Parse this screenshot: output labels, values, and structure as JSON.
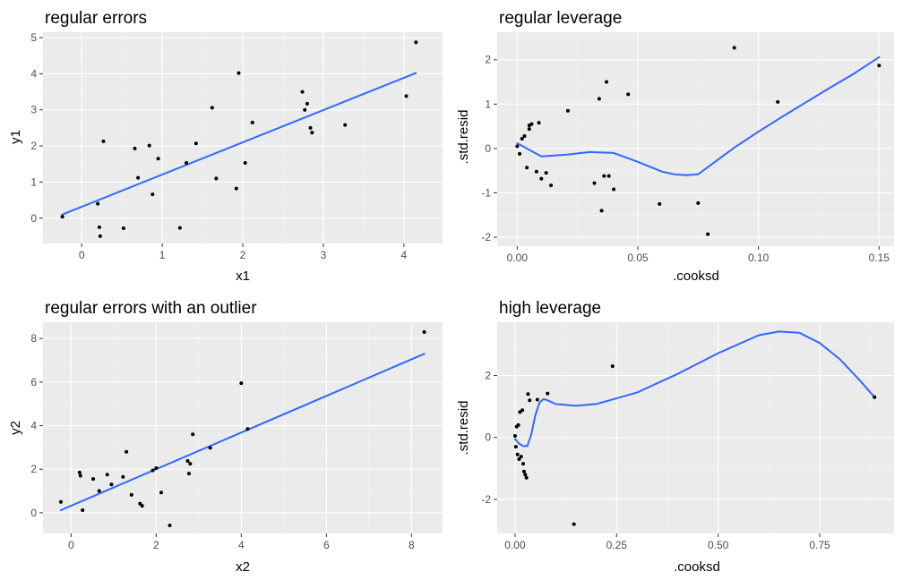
{
  "chart_data": [
    {
      "type": "scatter",
      "title": "regular errors",
      "xlabel": "x1",
      "ylabel": "y1",
      "xlim": [
        -0.48,
        4.48
      ],
      "ylim": [
        -0.7,
        5.15
      ],
      "xticks": [
        0,
        1,
        2,
        3,
        4
      ],
      "yticks": [
        0,
        1,
        2,
        3,
        4,
        5
      ],
      "xtick_labels": [
        "0",
        "1",
        "2",
        "3",
        "4"
      ],
      "ytick_labels": [
        "0",
        "1",
        "2",
        "3",
        "4",
        "5"
      ],
      "grid": true,
      "points": {
        "x": [
          -0.24,
          0.2,
          0.22,
          0.23,
          0.27,
          0.52,
          0.66,
          0.7,
          0.84,
          0.88,
          0.95,
          1.22,
          1.3,
          1.42,
          1.62,
          1.67,
          1.92,
          1.95,
          2.03,
          2.12,
          2.74,
          2.77,
          2.8,
          2.84,
          2.86,
          3.27,
          4.03,
          4.15
        ],
        "y": [
          0.04,
          0.4,
          -0.25,
          -0.5,
          2.13,
          -0.28,
          1.93,
          1.12,
          2.01,
          0.66,
          1.65,
          -0.27,
          1.53,
          2.07,
          3.06,
          1.1,
          0.82,
          4.02,
          1.53,
          2.65,
          3.5,
          3.0,
          3.17,
          2.5,
          2.37,
          2.58,
          3.38,
          4.87
        ]
      },
      "line": {
        "name": "",
        "x": [
          -0.24,
          4.15
        ],
        "y": [
          0.1,
          4.02
        ]
      }
    },
    {
      "type": "scatter",
      "title": "regular leverage",
      "xlabel": ".cooksd",
      "ylabel": ".std.resid",
      "xlim": [
        -0.0083,
        0.1562
      ],
      "ylim": [
        -2.2,
        2.62
      ],
      "xticks": [
        0,
        0.05,
        0.1,
        0.15
      ],
      "yticks": [
        -2,
        -1,
        0,
        1,
        2
      ],
      "xtick_labels": [
        "0.00",
        "0.05",
        "0.10",
        "0.15"
      ],
      "ytick_labels": [
        "-2",
        "-1",
        "0",
        "1",
        "2"
      ],
      "grid": true,
      "points": {
        "x": [
          0.0,
          0.001,
          0.002,
          0.003,
          0.004,
          0.005,
          0.005,
          0.006,
          0.008,
          0.009,
          0.01,
          0.012,
          0.014,
          0.021,
          0.032,
          0.034,
          0.035,
          0.036,
          0.037,
          0.038,
          0.04,
          0.046,
          0.059,
          0.075,
          0.079,
          0.09,
          0.108,
          0.15
        ],
        "y": [
          0.05,
          -0.12,
          0.22,
          0.28,
          -0.43,
          0.44,
          0.52,
          0.55,
          -0.52,
          0.58,
          -0.68,
          -0.55,
          -0.83,
          0.85,
          -0.78,
          1.12,
          -1.4,
          -0.62,
          1.5,
          -0.62,
          -0.92,
          1.22,
          -1.25,
          -1.23,
          -1.93,
          2.27,
          1.05,
          1.87
        ]
      },
      "line": {
        "name": "",
        "x": [
          0.0,
          0.01,
          0.02,
          0.03,
          0.04,
          0.05,
          0.06,
          0.065,
          0.07,
          0.075,
          0.08,
          0.09,
          0.1,
          0.11,
          0.12,
          0.13,
          0.14,
          0.15
        ],
        "y": [
          0.12,
          -0.18,
          -0.14,
          -0.08,
          -0.1,
          -0.3,
          -0.52,
          -0.58,
          -0.6,
          -0.58,
          -0.38,
          0.02,
          0.38,
          0.72,
          1.05,
          1.38,
          1.7,
          2.06
        ]
      }
    },
    {
      "type": "scatter",
      "title": "regular errors with an outlier",
      "xlabel": "x2",
      "ylabel": "y2",
      "xlim": [
        -0.66,
        8.73
      ],
      "ylim": [
        -0.95,
        8.75
      ],
      "xticks": [
        0,
        2,
        4,
        6,
        8
      ],
      "yticks": [
        0,
        2,
        4,
        6,
        8
      ],
      "xtick_labels": [
        "0",
        "2",
        "4",
        "6",
        "8"
      ],
      "ytick_labels": [
        "0",
        "2",
        "4",
        "6",
        "8"
      ],
      "grid": true,
      "points": {
        "x": [
          -0.24,
          0.2,
          0.22,
          0.27,
          0.52,
          0.66,
          0.85,
          0.95,
          1.22,
          1.3,
          1.42,
          1.62,
          1.67,
          1.92,
          2.0,
          2.12,
          2.32,
          2.74,
          2.77,
          2.8,
          2.86,
          3.27,
          4.0,
          4.15,
          8.3
        ],
        "y": [
          0.5,
          1.85,
          1.7,
          0.12,
          1.55,
          1.0,
          1.75,
          1.3,
          1.65,
          2.8,
          0.82,
          0.42,
          0.32,
          1.95,
          2.05,
          0.93,
          -0.58,
          2.38,
          1.8,
          2.25,
          3.6,
          2.98,
          5.95,
          3.85,
          8.3
        ]
      },
      "line": {
        "name": "",
        "x": [
          -0.24,
          8.3
        ],
        "y": [
          0.12,
          7.3
        ]
      }
    },
    {
      "type": "scatter",
      "title": "high leverage",
      "xlabel": ".cooksd",
      "ylabel": ".std.resid",
      "xlim": [
        -0.044,
        0.933
      ],
      "ylim": [
        -3.1,
        3.72
      ],
      "xticks": [
        0,
        0.25,
        0.5,
        0.75
      ],
      "yticks": [
        -2,
        0,
        2
      ],
      "xtick_labels": [
        "0.00",
        "0.25",
        "0.50",
        "0.75"
      ],
      "ytick_labels": [
        "-2",
        "0",
        "2"
      ],
      "grid": true,
      "points": {
        "x": [
          0.0,
          0.002,
          0.004,
          0.006,
          0.008,
          0.01,
          0.012,
          0.015,
          0.018,
          0.02,
          0.022,
          0.025,
          0.028,
          0.032,
          0.036,
          0.055,
          0.08,
          0.145,
          0.24,
          0.885
        ],
        "y": [
          0.05,
          -0.3,
          0.35,
          -0.55,
          0.4,
          -0.7,
          0.82,
          -0.62,
          0.88,
          -0.85,
          -1.1,
          -1.2,
          -1.3,
          1.4,
          1.2,
          1.22,
          1.42,
          -2.8,
          2.3,
          1.3
        ]
      },
      "line": {
        "name": "",
        "x": [
          0.0,
          0.01,
          0.02,
          0.03,
          0.04,
          0.05,
          0.06,
          0.07,
          0.08,
          0.1,
          0.15,
          0.2,
          0.3,
          0.4,
          0.5,
          0.6,
          0.65,
          0.7,
          0.75,
          0.8,
          0.85,
          0.885
        ],
        "y": [
          -0.05,
          -0.2,
          -0.28,
          -0.28,
          0.1,
          0.72,
          1.12,
          1.24,
          1.2,
          1.08,
          1.02,
          1.08,
          1.45,
          2.05,
          2.72,
          3.3,
          3.42,
          3.38,
          3.05,
          2.52,
          1.82,
          1.3
        ]
      }
    }
  ],
  "colors": {
    "panel_bg": "#ebebeb",
    "grid_major": "#ffffff",
    "point": "#000000",
    "smooth_line": "#3366ff",
    "tick_text": "#4d4d4d"
  }
}
